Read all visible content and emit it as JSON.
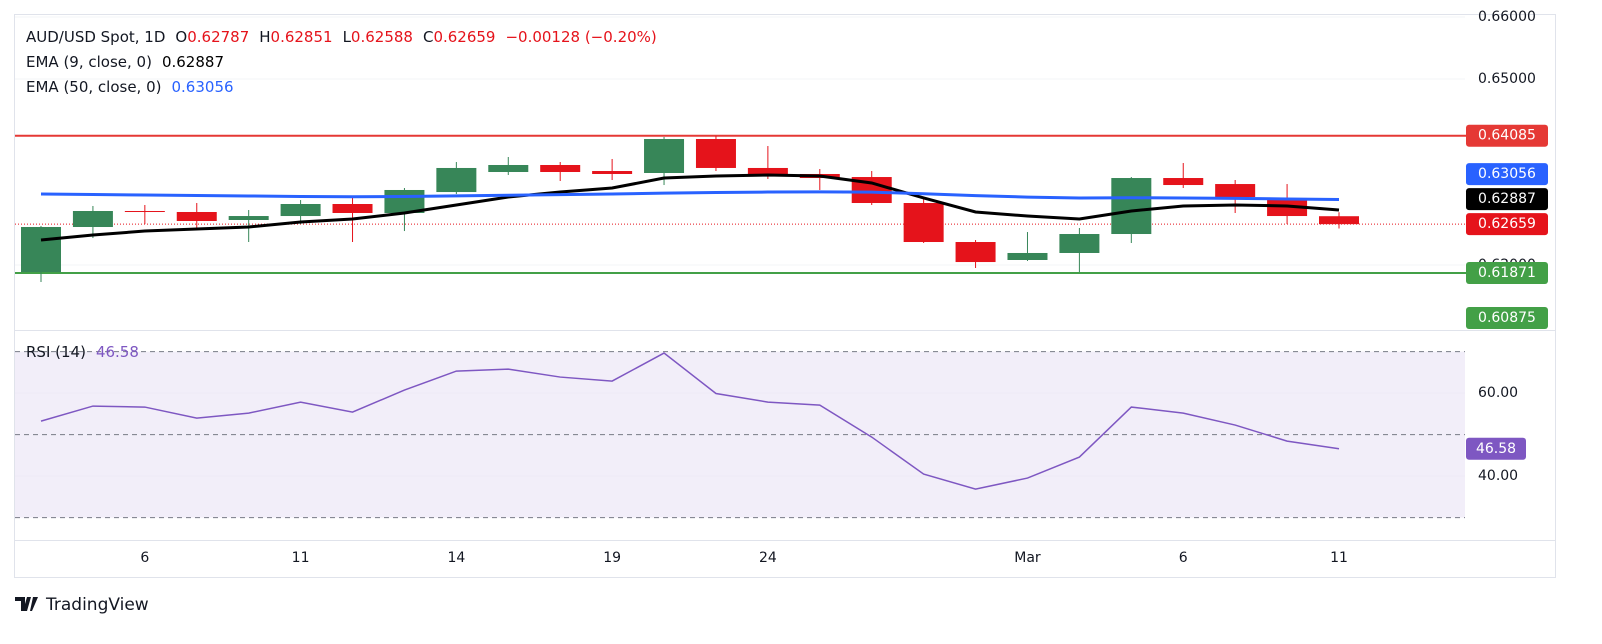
{
  "chart_data": [
    {
      "type": "candlestick",
      "title": "AUD/USD Spot, 1D",
      "ohlc_letters": [
        "O",
        "H",
        "L",
        "C"
      ],
      "change_label": "−0.00128 (−0.20%)",
      "categories": [
        null,
        null,
        "6",
        null,
        null,
        "11",
        null,
        null,
        "14",
        null,
        null,
        "19",
        null,
        null,
        "24",
        null,
        null,
        null,
        null,
        "Mar",
        null,
        null,
        "6",
        null,
        null,
        "11"
      ],
      "open": [
        0.61887,
        0.62613,
        0.62871,
        0.62855,
        0.62726,
        0.6279,
        0.62984,
        0.62839,
        0.63177,
        0.635,
        0.63613,
        0.63516,
        0.63484,
        0.64032,
        0.63565,
        0.63468,
        0.63419,
        0.63,
        0.62371,
        0.62081,
        0.62194,
        0.625,
        0.63403,
        0.63306,
        0.63081,
        0.62787
      ],
      "high": [
        0.6263,
        0.62952,
        0.62968,
        0.63,
        0.62887,
        0.63048,
        0.63081,
        0.63242,
        0.63661,
        0.63742,
        0.63661,
        0.6371,
        0.64065,
        0.64081,
        0.63919,
        0.63548,
        0.63516,
        0.63081,
        0.62403,
        0.62532,
        0.62597,
        0.63419,
        0.63645,
        0.63371,
        0.63306,
        0.62851
      ],
      "low": [
        0.61726,
        0.62435,
        0.62661,
        0.62597,
        0.62371,
        0.62661,
        0.62371,
        0.62548,
        0.63145,
        0.63452,
        0.63355,
        0.63371,
        0.6329,
        0.63516,
        0.63387,
        0.6321,
        0.62968,
        0.62355,
        0.61952,
        0.62065,
        0.61887,
        0.62355,
        0.63242,
        0.62839,
        0.62661,
        0.62588
      ],
      "close": [
        0.62613,
        0.62871,
        0.62855,
        0.6271,
        0.6279,
        0.62984,
        0.62839,
        0.6321,
        0.63565,
        0.63613,
        0.635,
        0.63468,
        0.64032,
        0.63565,
        0.63452,
        0.63403,
        0.63,
        0.62371,
        0.62048,
        0.62194,
        0.625,
        0.63403,
        0.6329,
        0.63097,
        0.6279,
        0.62659
      ],
      "up_color": "#378658",
      "down_color": "#e5131b",
      "ema": [
        {
          "label": "EMA (9, close, 0)",
          "color": "#000000",
          "values": [
            0.62403,
            0.62484,
            0.62548,
            0.62581,
            0.62613,
            0.62694,
            0.62742,
            0.62839,
            0.62968,
            0.63097,
            0.63177,
            0.63242,
            0.63403,
            0.63435,
            0.63452,
            0.63435,
            0.63323,
            0.63081,
            0.62855,
            0.6279,
            0.62742,
            0.62871,
            0.62952,
            0.62968,
            0.62952,
            0.62887
          ]
        },
        {
          "label": "EMA (50, close, 0)",
          "color": "#2962ff",
          "values": [
            0.63145,
            0.63137,
            0.63129,
            0.63121,
            0.63113,
            0.63105,
            0.631,
            0.63105,
            0.63115,
            0.63125,
            0.63135,
            0.63145,
            0.6316,
            0.6317,
            0.63177,
            0.6318,
            0.63175,
            0.6315,
            0.6312,
            0.63095,
            0.6308,
            0.63085,
            0.6308,
            0.63075,
            0.63065,
            0.63056
          ]
        }
      ],
      "levels": [
        {
          "value": 0.64085,
          "color": "#e53935",
          "line": true
        },
        {
          "value": 0.61871,
          "color": "#43a047",
          "line": true
        },
        {
          "value": 0.60875,
          "color": "#43a047",
          "line": false
        }
      ],
      "ylim": [
        0.60952,
        0.66032
      ],
      "yticks": [
        {
          "value": 0.66,
          "label": "0.66000"
        },
        {
          "value": 0.65,
          "label": "0.65000"
        },
        {
          "value": 0.62,
          "label": "0.62000"
        }
      ],
      "grid": true
    },
    {
      "type": "line",
      "title": "RSI (14)",
      "color": "#7e57c2",
      "values": [
        53.25,
        56.87,
        56.63,
        53.98,
        55.18,
        57.83,
        55.42,
        60.72,
        65.3,
        65.78,
        63.86,
        62.89,
        69.64,
        59.9,
        57.83,
        57.11,
        49.4,
        40.48,
        36.87,
        39.52,
        44.58,
        56.63,
        55.18,
        52.29,
        48.43,
        46.58
      ],
      "levels": [
        70,
        50,
        30
      ],
      "ylim": [
        24.6,
        75.2
      ],
      "yticks": [
        {
          "value": 60,
          "label": "60.00"
        },
        {
          "value": 40,
          "label": "40.00"
        }
      ],
      "grid": true
    }
  ],
  "brand": "TradingView"
}
